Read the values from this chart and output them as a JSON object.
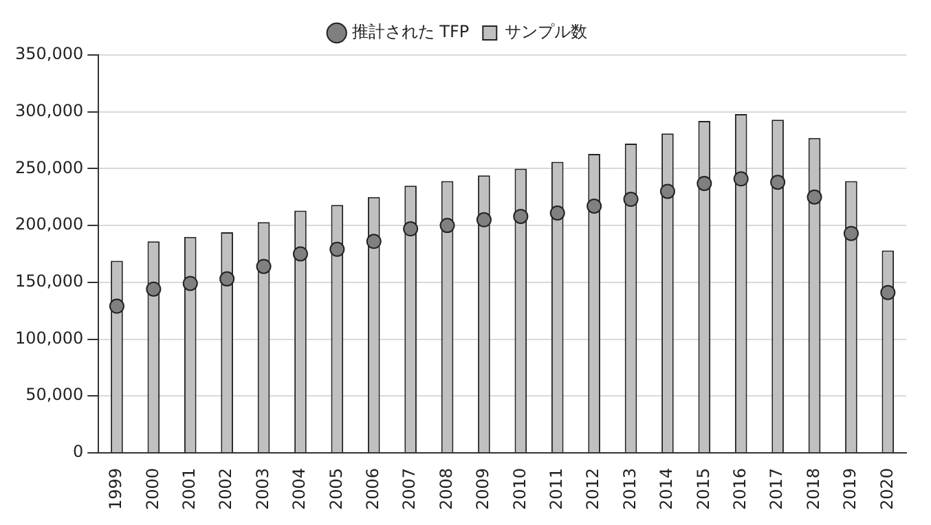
{
  "chart_data": {
    "type": "bar",
    "categories": [
      "1999",
      "2000",
      "2001",
      "2002",
      "2003",
      "2004",
      "2005",
      "2006",
      "2007",
      "2008",
      "2009",
      "2010",
      "2011",
      "2012",
      "2013",
      "2014",
      "2015",
      "2016",
      "2017",
      "2018",
      "2019",
      "2020"
    ],
    "series": [
      {
        "name": "サンプル数",
        "color": "#c0c0c0",
        "values": [
          169000,
          186000,
          190000,
          194000,
          203000,
          213000,
          218000,
          225000,
          235000,
          239000,
          244000,
          250000,
          256000,
          263000,
          272000,
          281000,
          292000,
          298000,
          293000,
          277000,
          239000,
          178000
        ]
      },
      {
        "name": "推計された TFP",
        "type": "scatter",
        "color": "#808080",
        "values": [
          129000,
          144000,
          149000,
          153000,
          164000,
          175000,
          179000,
          186000,
          197000,
          200000,
          205000,
          208000,
          211000,
          217000,
          223000,
          230000,
          237000,
          241000,
          238000,
          225000,
          193000,
          141000
        ]
      }
    ],
    "ylim": [
      0,
      350000
    ],
    "yticks": [
      {
        "value": 0,
        "label": "0"
      },
      {
        "value": 50000,
        "label": "50,000"
      },
      {
        "value": 100000,
        "label": "100,000"
      },
      {
        "value": 150000,
        "label": "150,000"
      },
      {
        "value": 200000,
        "label": "200,000"
      },
      {
        "value": 250000,
        "label": "250,000"
      },
      {
        "value": 300000,
        "label": "300,000"
      },
      {
        "value": 350000,
        "label": "350,000"
      }
    ],
    "grid": "y",
    "legend": "top",
    "marker": "circle"
  }
}
